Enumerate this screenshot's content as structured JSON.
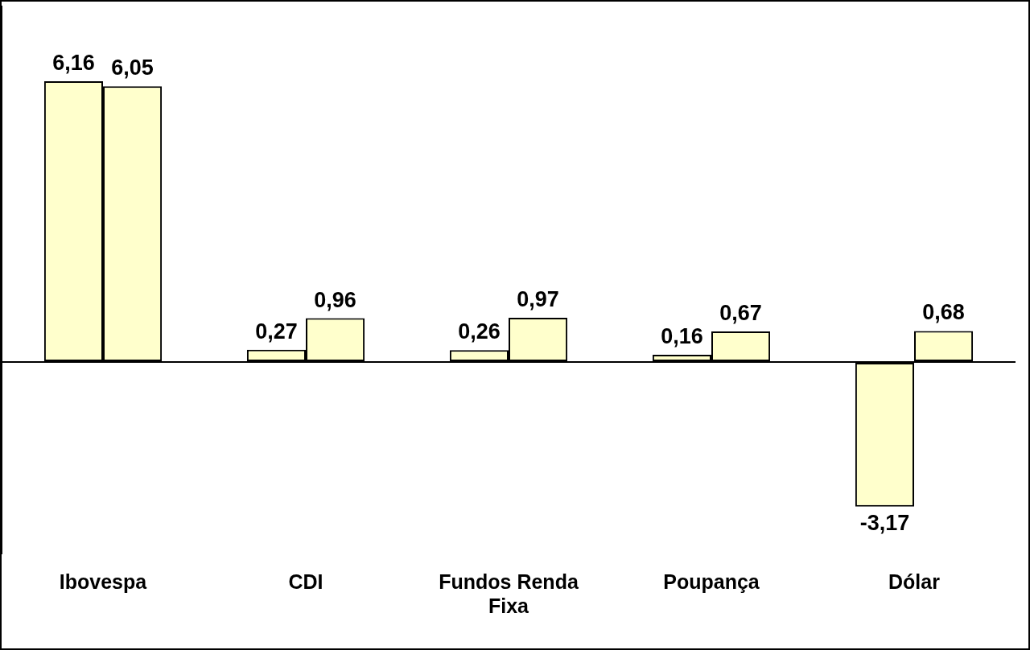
{
  "chart_data": {
    "type": "bar",
    "categories": [
      "Ibovespa",
      "CDI",
      "Fundos Renda Fixa",
      "Poupança",
      "Dólar"
    ],
    "series": [
      {
        "color": "#ffffcc",
        "values": [
          6.16,
          0.27,
          0.26,
          0.16,
          -3.17
        ],
        "value_labels": [
          "6,16",
          "0,27",
          "0,26",
          "0,16",
          "-3,17"
        ]
      },
      {
        "color": "#ffffcc",
        "values": [
          6.05,
          0.96,
          0.97,
          0.67,
          0.68
        ],
        "value_labels": [
          "6,05",
          "0,96",
          "0,97",
          "0,67",
          "0,68"
        ]
      }
    ],
    "ylim": [
      -4.2,
      7.8
    ],
    "yticks": [
      0
    ],
    "grid": true,
    "data_labels": true,
    "tick_labels": "x"
  }
}
